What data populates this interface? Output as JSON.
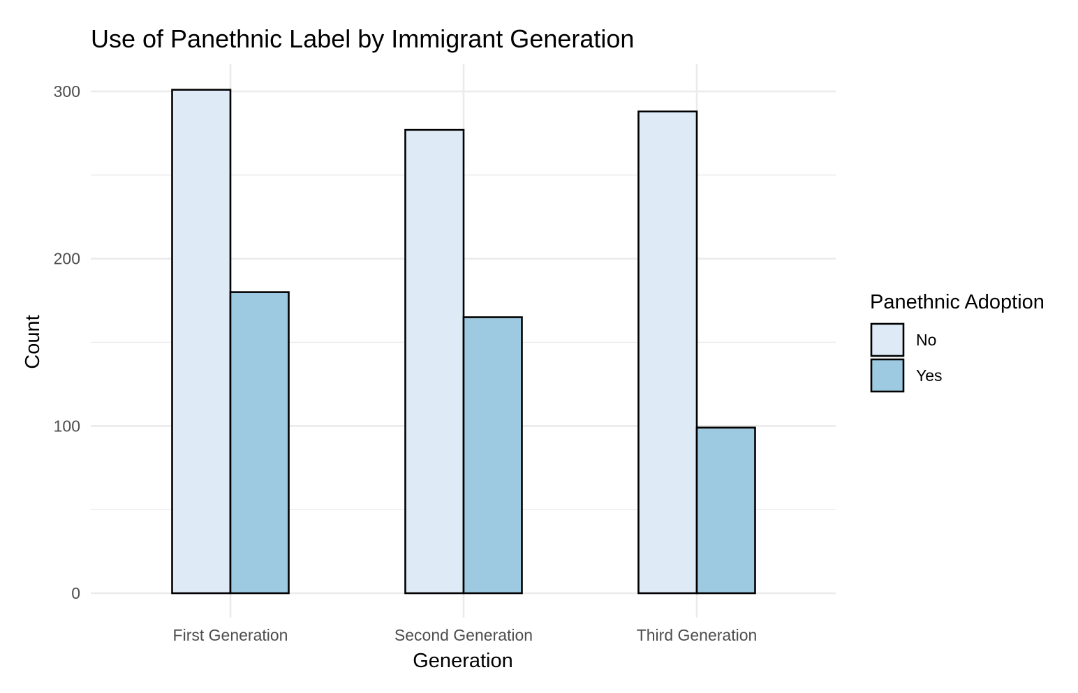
{
  "chart_data": {
    "type": "bar",
    "title": "Use of Panethnic Label by Immigrant Generation",
    "xlabel": "Generation",
    "ylabel": "Count",
    "categories": [
      "First Generation",
      "Second Generation",
      "Third Generation"
    ],
    "series": [
      {
        "name": "No",
        "values": [
          301,
          277,
          288
        ],
        "color": "#deebf7"
      },
      {
        "name": "Yes",
        "values": [
          180,
          165,
          99
        ],
        "color": "#9ecae1"
      }
    ],
    "ylim": [
      0,
      300
    ],
    "yticks": [
      0,
      100,
      200,
      300
    ],
    "grid": true,
    "legend": {
      "title": "Panethnic Adoption",
      "placement": "right"
    },
    "colors": {
      "bar_outline": "#000000",
      "grid": "#ebebeb",
      "tick_label": "#4d4d4d",
      "text": "#000000"
    }
  }
}
